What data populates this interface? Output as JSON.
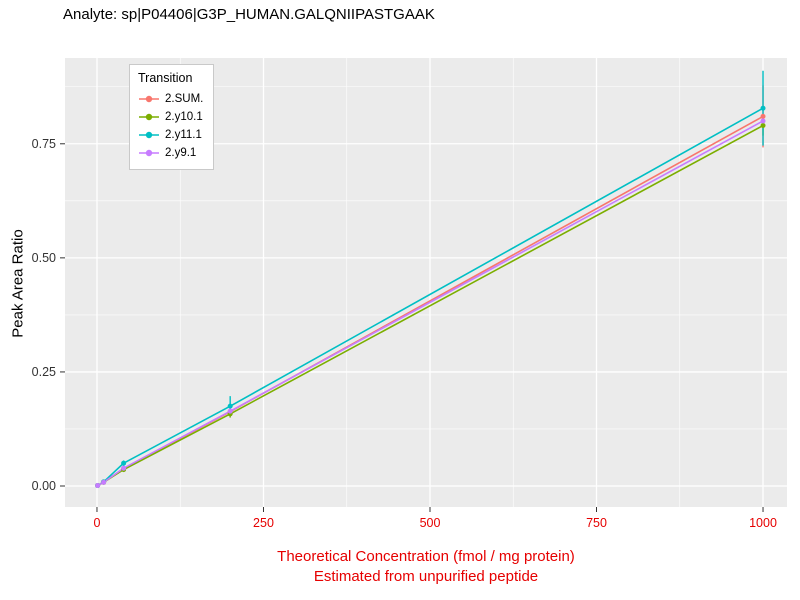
{
  "chart_data": {
    "type": "line",
    "title": "Analyte: sp|P04406|G3P_HUMAN.GALQNIIPASTGAAK",
    "ylabel": "Peak Area Ratio",
    "xlabel_line1": "Theoretical Concentration (fmol / mg protein)",
    "xlabel_line2": "Estimated from unpurified peptide",
    "legend_title": "Transition",
    "x_ticks": [
      0,
      250,
      500,
      750,
      1000
    ],
    "x_tick_labels": [
      "0",
      "250",
      "500",
      "750",
      "1000"
    ],
    "y_ticks": [
      0,
      0.25,
      0.5,
      0.75
    ],
    "y_tick_labels": [
      "0.00",
      "0.25",
      "0.50",
      "0.75"
    ],
    "x_minor_ticks": [
      125,
      375,
      625,
      875
    ],
    "y_minor_ticks": [
      0.125,
      0.375,
      0.625,
      0.875
    ],
    "xlim": [
      -48,
      1036
    ],
    "ylim": [
      -0.046,
      0.938
    ],
    "grid": true,
    "legend_position": "inside-top-left",
    "series": [
      {
        "name": "2.SUM.",
        "color": "#F8766D",
        "x": [
          1,
          10,
          40,
          200,
          1000
        ],
        "y": [
          0.001,
          0.009,
          0.038,
          0.163,
          0.81
        ],
        "err": [
          0.002,
          0.003,
          0.004,
          0.01,
          0.068
        ]
      },
      {
        "name": "2.y10.1",
        "color": "#7CAE00",
        "x": [
          1,
          10,
          40,
          200,
          1000
        ],
        "y": [
          0.001,
          0.008,
          0.036,
          0.158,
          0.79
        ],
        "err": [
          0.002,
          0.003,
          0.004,
          0.008,
          0.022
        ]
      },
      {
        "name": "2.y11.1",
        "color": "#00BFC4",
        "x": [
          1,
          10,
          40,
          200,
          1000
        ],
        "y": [
          0.001,
          0.009,
          0.05,
          0.175,
          0.828
        ],
        "err": [
          0.002,
          0.003,
          0.006,
          0.022,
          0.082
        ]
      },
      {
        "name": "2.y9.1",
        "color": "#C77CFF",
        "x": [
          1,
          10,
          40,
          200,
          1000
        ],
        "y": [
          0.001,
          0.008,
          0.039,
          0.164,
          0.8
        ],
        "err": [
          0.002,
          0.003,
          0.004,
          0.008,
          0.012
        ]
      }
    ],
    "colors": {
      "panel_bg": "#EBEBEB",
      "grid": "#FFFFFF",
      "axis_text_x": "#E60000",
      "axis_text_y": "#333333",
      "axis_title_x": "#E60000",
      "axis_title_y": "#000000",
      "tick_mark": "#333333"
    }
  }
}
